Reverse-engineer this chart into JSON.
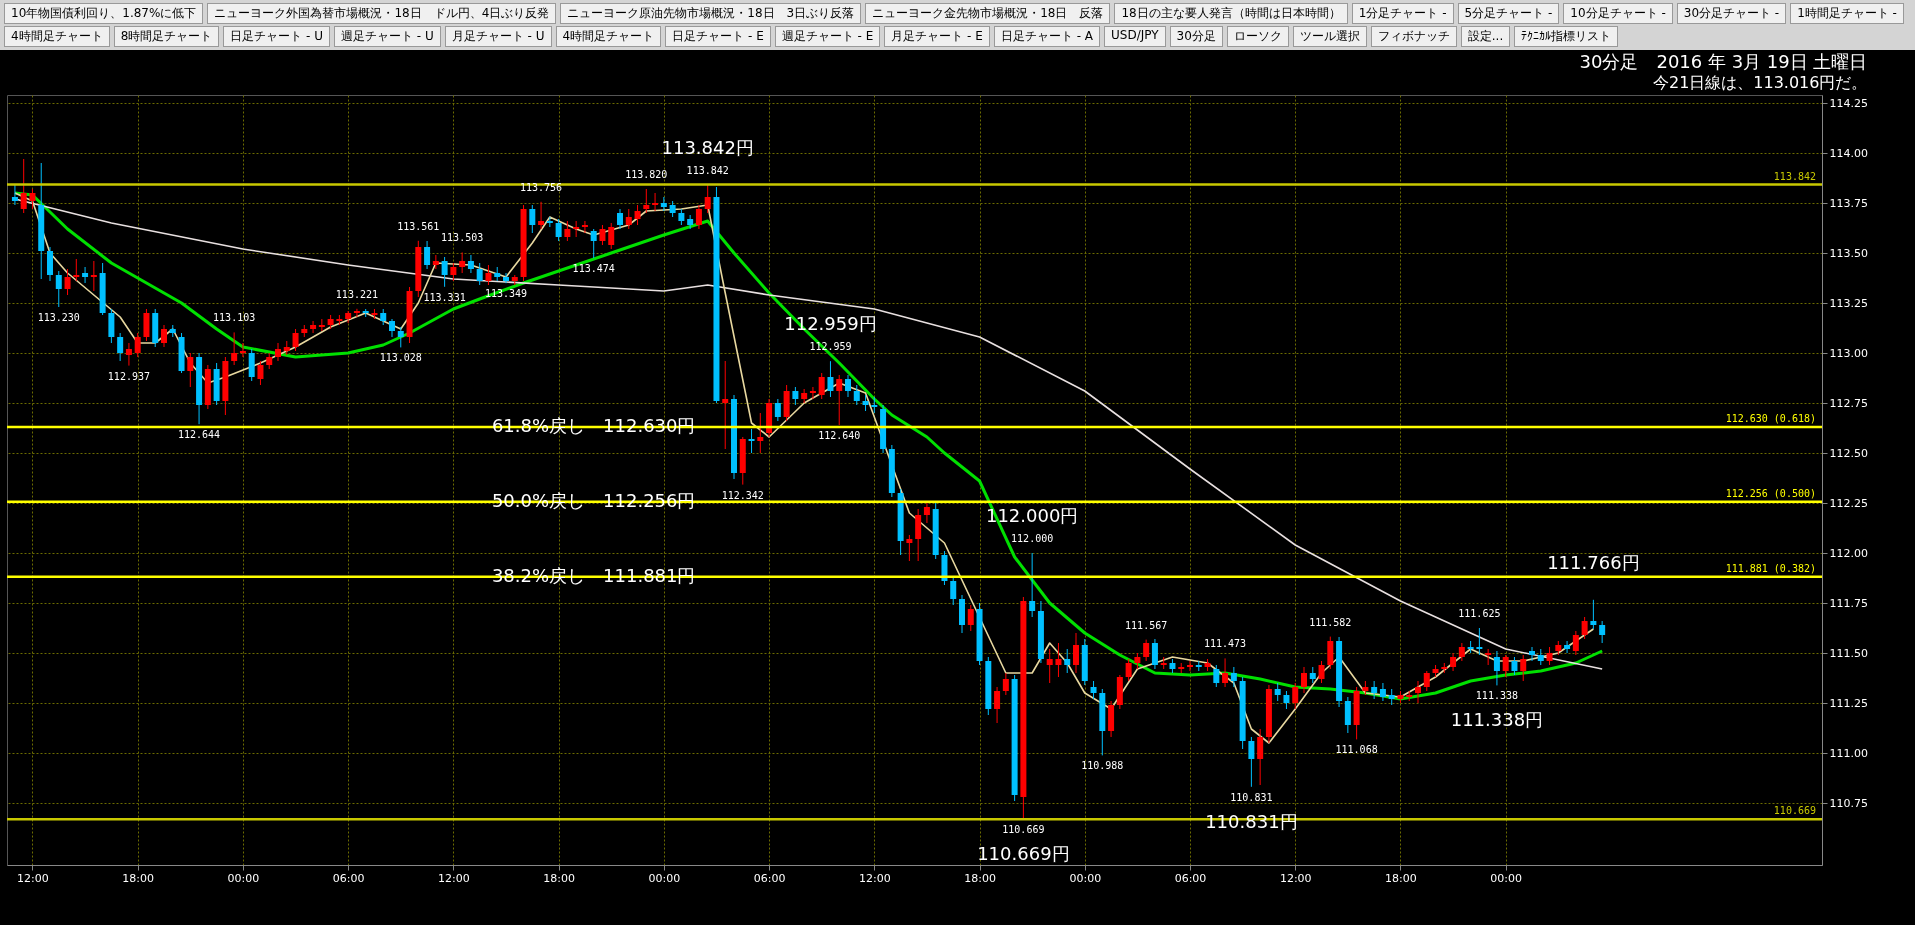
{
  "chart_data": {
    "type": "candlestick",
    "title": "30分足　2016 年 3月 19日 土曜日",
    "subtitle": "今21日線は、113.016円だ。",
    "x": [
      "2016-03-15T11:00",
      "2016-03-15T11:30",
      "2016-03-15T12:00",
      "2016-03-15T12:30",
      "2016-03-15T13:00",
      "2016-03-15T13:30",
      "2016-03-15T14:00",
      "2016-03-15T14:30",
      "2016-03-15T15:00",
      "2016-03-15T15:30",
      "2016-03-15T16:00",
      "2016-03-15T16:30",
      "2016-03-15T17:00",
      "2016-03-15T17:30",
      "2016-03-15T18:00",
      "2016-03-15T18:30",
      "2016-03-15T19:00",
      "2016-03-15T19:30",
      "2016-03-15T20:00",
      "2016-03-15T20:30",
      "2016-03-15T21:00",
      "2016-03-15T21:30",
      "2016-03-15T22:00",
      "2016-03-15T22:30",
      "2016-03-15T23:00",
      "2016-03-15T23:30",
      "2016-03-16T00:00",
      "2016-03-16T00:30",
      "2016-03-16T01:00",
      "2016-03-16T01:30",
      "2016-03-16T02:00",
      "2016-03-16T02:30",
      "2016-03-16T03:00",
      "2016-03-16T03:30",
      "2016-03-16T04:00",
      "2016-03-16T04:30",
      "2016-03-16T05:00",
      "2016-03-16T05:30",
      "2016-03-16T06:00",
      "2016-03-16T06:30",
      "2016-03-16T07:00",
      "2016-03-16T07:30",
      "2016-03-16T08:00",
      "2016-03-16T08:30",
      "2016-03-16T09:00",
      "2016-03-16T09:30",
      "2016-03-16T10:00",
      "2016-03-16T10:30",
      "2016-03-16T11:00",
      "2016-03-16T11:30",
      "2016-03-16T12:00",
      "2016-03-16T12:30",
      "2016-03-16T13:00",
      "2016-03-16T13:30",
      "2016-03-16T14:00",
      "2016-03-16T14:30",
      "2016-03-16T15:00",
      "2016-03-16T15:30",
      "2016-03-16T16:00",
      "2016-03-16T16:30",
      "2016-03-16T17:00",
      "2016-03-16T17:30",
      "2016-03-16T18:00",
      "2016-03-16T18:30",
      "2016-03-16T19:00",
      "2016-03-16T19:30",
      "2016-03-16T20:00",
      "2016-03-16T20:30",
      "2016-03-16T21:00",
      "2016-03-16T21:30",
      "2016-03-16T22:00",
      "2016-03-16T22:30",
      "2016-03-16T23:00",
      "2016-03-16T23:30",
      "2016-03-17T00:00",
      "2016-03-17T00:30",
      "2016-03-17T01:00",
      "2016-03-17T01:30",
      "2016-03-17T02:00",
      "2016-03-17T02:30",
      "2016-03-17T03:00",
      "2016-03-17T03:30",
      "2016-03-17T04:00",
      "2016-03-17T04:30",
      "2016-03-17T05:00",
      "2016-03-17T05:30",
      "2016-03-17T06:00",
      "2016-03-17T06:30",
      "2016-03-17T07:00",
      "2016-03-17T07:30",
      "2016-03-17T08:00",
      "2016-03-17T08:30",
      "2016-03-17T09:00",
      "2016-03-17T09:30",
      "2016-03-17T10:00",
      "2016-03-17T10:30",
      "2016-03-17T11:00",
      "2016-03-17T11:30",
      "2016-03-17T12:00",
      "2016-03-17T12:30",
      "2016-03-17T13:00",
      "2016-03-17T13:30",
      "2016-03-17T14:00",
      "2016-03-17T14:30",
      "2016-03-17T15:00",
      "2016-03-17T15:30",
      "2016-03-17T16:00",
      "2016-03-17T16:30",
      "2016-03-17T17:00",
      "2016-03-17T17:30",
      "2016-03-17T18:00",
      "2016-03-17T18:30",
      "2016-03-17T19:00",
      "2016-03-17T19:30",
      "2016-03-17T20:00",
      "2016-03-17T20:30",
      "2016-03-17T21:00",
      "2016-03-17T21:30",
      "2016-03-17T22:00",
      "2016-03-17T22:30",
      "2016-03-17T23:00",
      "2016-03-17T23:30",
      "2016-03-18T00:00",
      "2016-03-18T00:30",
      "2016-03-18T01:00",
      "2016-03-18T01:30",
      "2016-03-18T02:00",
      "2016-03-18T02:30",
      "2016-03-18T03:00",
      "2016-03-18T03:30",
      "2016-03-18T04:00",
      "2016-03-18T04:30",
      "2016-03-18T05:00",
      "2016-03-18T05:30",
      "2016-03-18T06:00",
      "2016-03-18T06:30",
      "2016-03-18T07:00",
      "2016-03-18T07:30",
      "2016-03-18T08:00",
      "2016-03-18T08:30",
      "2016-03-18T09:00",
      "2016-03-18T09:30",
      "2016-03-18T10:00",
      "2016-03-18T10:30",
      "2016-03-18T11:00",
      "2016-03-18T11:30",
      "2016-03-18T12:00",
      "2016-03-18T12:30",
      "2016-03-18T13:00",
      "2016-03-18T13:30",
      "2016-03-18T14:00",
      "2016-03-18T14:30",
      "2016-03-18T15:00",
      "2016-03-18T15:30",
      "2016-03-18T16:00",
      "2016-03-18T16:30",
      "2016-03-18T17:00",
      "2016-03-18T17:30",
      "2016-03-18T18:00",
      "2016-03-18T18:30",
      "2016-03-18T19:00",
      "2016-03-18T19:30",
      "2016-03-18T20:00",
      "2016-03-18T20:30",
      "2016-03-18T21:00",
      "2016-03-18T21:30",
      "2016-03-18T22:00",
      "2016-03-18T22:30",
      "2016-03-18T23:00",
      "2016-03-18T23:30",
      "2016-03-19T00:00",
      "2016-03-19T00:30",
      "2016-03-19T01:00",
      "2016-03-19T01:30",
      "2016-03-19T02:00",
      "2016-03-19T02:30",
      "2016-03-19T03:00",
      "2016-03-19T03:30",
      "2016-03-19T04:00",
      "2016-03-19T04:30",
      "2016-03-19T05:00",
      "2016-03-19T05:30"
    ],
    "ohlc": [
      [
        113.78,
        113.84,
        113.74,
        113.76
      ],
      [
        113.72,
        113.97,
        113.7,
        113.8
      ],
      [
        113.76,
        113.82,
        113.72,
        113.8
      ],
      [
        113.74,
        113.95,
        113.37,
        113.51
      ],
      [
        113.51,
        113.53,
        113.36,
        113.39
      ],
      [
        113.39,
        113.41,
        113.23,
        113.32
      ],
      [
        113.32,
        113.42,
        113.29,
        113.38
      ],
      [
        113.38,
        113.47,
        113.36,
        113.39
      ],
      [
        113.4,
        113.43,
        113.35,
        113.38
      ],
      [
        113.38,
        113.46,
        113.31,
        113.39
      ],
      [
        113.4,
        113.45,
        113.19,
        113.2
      ],
      [
        113.2,
        113.22,
        113.05,
        113.08
      ],
      [
        113.08,
        113.1,
        112.96,
        113.0
      ],
      [
        112.99,
        113.05,
        112.937,
        113.02
      ],
      [
        113.0,
        113.1,
        112.98,
        113.08
      ],
      [
        113.08,
        113.22,
        113.06,
        113.2
      ],
      [
        113.2,
        113.22,
        113.03,
        113.05
      ],
      [
        113.05,
        113.14,
        113.03,
        113.12
      ],
      [
        113.12,
        113.14,
        113.08,
        113.1
      ],
      [
        113.08,
        113.1,
        112.9,
        112.91
      ],
      [
        112.91,
        113.0,
        112.83,
        112.98
      ],
      [
        112.98,
        113.0,
        112.644,
        112.74
      ],
      [
        112.74,
        112.94,
        112.72,
        112.92
      ],
      [
        112.92,
        112.95,
        112.74,
        112.76
      ],
      [
        112.76,
        112.98,
        112.69,
        112.96
      ],
      [
        112.96,
        113.103,
        112.94,
        113.0
      ],
      [
        113.0,
        113.05,
        112.98,
        113.01
      ],
      [
        113.0,
        113.02,
        112.86,
        112.88
      ],
      [
        112.87,
        112.96,
        112.84,
        112.94
      ],
      [
        112.94,
        113.0,
        112.92,
        112.98
      ],
      [
        112.98,
        113.05,
        112.96,
        113.02
      ],
      [
        113.01,
        113.06,
        112.99,
        113.03
      ],
      [
        113.03,
        113.12,
        113.01,
        113.1
      ],
      [
        113.1,
        113.14,
        113.08,
        113.12
      ],
      [
        113.12,
        113.16,
        113.1,
        113.14
      ],
      [
        113.13,
        113.17,
        113.11,
        113.14
      ],
      [
        113.14,
        113.19,
        113.12,
        113.17
      ],
      [
        113.16,
        113.19,
        113.14,
        113.17
      ],
      [
        113.17,
        113.21,
        113.15,
        113.2
      ],
      [
        113.2,
        113.221,
        113.18,
        113.21
      ],
      [
        113.21,
        113.22,
        113.18,
        113.2
      ],
      [
        113.19,
        113.22,
        113.17,
        113.2
      ],
      [
        113.2,
        113.22,
        113.14,
        113.16
      ],
      [
        113.16,
        113.17,
        113.08,
        113.11
      ],
      [
        113.11,
        113.13,
        113.028,
        113.08
      ],
      [
        113.08,
        113.33,
        113.05,
        113.31
      ],
      [
        113.31,
        113.561,
        113.28,
        113.53
      ],
      [
        113.53,
        113.56,
        113.42,
        113.44
      ],
      [
        113.44,
        113.49,
        113.42,
        113.46
      ],
      [
        113.46,
        113.48,
        113.331,
        113.39
      ],
      [
        113.39,
        113.45,
        113.36,
        113.43
      ],
      [
        113.43,
        113.503,
        113.4,
        113.46
      ],
      [
        113.46,
        113.49,
        113.4,
        113.42
      ],
      [
        113.42,
        113.45,
        113.34,
        113.36
      ],
      [
        113.36,
        113.44,
        113.34,
        113.4
      ],
      [
        113.4,
        113.43,
        113.36,
        113.38
      ],
      [
        113.38,
        113.4,
        113.349,
        113.36
      ],
      [
        113.36,
        113.39,
        113.34,
        113.38
      ],
      [
        113.38,
        113.74,
        113.36,
        113.72
      ],
      [
        113.72,
        113.74,
        113.6,
        113.64
      ],
      [
        113.64,
        113.756,
        113.62,
        113.66
      ],
      [
        113.66,
        113.68,
        113.63,
        113.65
      ],
      [
        113.65,
        113.67,
        113.56,
        113.58
      ],
      [
        113.58,
        113.66,
        113.56,
        113.62
      ],
      [
        113.62,
        113.66,
        113.58,
        113.63
      ],
      [
        113.63,
        113.66,
        113.6,
        113.64
      ],
      [
        113.61,
        113.62,
        113.474,
        113.56
      ],
      [
        113.56,
        113.64,
        113.54,
        113.62
      ],
      [
        113.54,
        113.65,
        113.52,
        113.63
      ],
      [
        113.7,
        113.72,
        113.62,
        113.64
      ],
      [
        113.64,
        113.72,
        113.62,
        113.68
      ],
      [
        113.67,
        113.74,
        113.64,
        113.71
      ],
      [
        113.72,
        113.82,
        113.7,
        113.74
      ],
      [
        113.74,
        113.8,
        113.71,
        113.75
      ],
      [
        113.75,
        113.78,
        113.71,
        113.73
      ],
      [
        113.74,
        113.76,
        113.68,
        113.7
      ],
      [
        113.7,
        113.72,
        113.64,
        113.66
      ],
      [
        113.67,
        113.69,
        113.62,
        113.64
      ],
      [
        113.64,
        113.74,
        113.62,
        113.72
      ],
      [
        113.72,
        113.842,
        113.7,
        113.78
      ],
      [
        113.78,
        113.83,
        112.75,
        112.76
      ],
      [
        112.75,
        112.96,
        112.52,
        112.77
      ],
      [
        112.77,
        112.79,
        112.37,
        112.4
      ],
      [
        112.4,
        112.58,
        112.342,
        112.57
      ],
      [
        112.57,
        112.62,
        112.5,
        112.56
      ],
      [
        112.56,
        112.7,
        112.5,
        112.58
      ],
      [
        112.6,
        112.77,
        112.58,
        112.75
      ],
      [
        112.75,
        112.77,
        112.66,
        112.68
      ],
      [
        112.68,
        112.84,
        112.66,
        112.81
      ],
      [
        112.81,
        112.83,
        112.74,
        112.77
      ],
      [
        112.77,
        112.82,
        112.75,
        112.8
      ],
      [
        112.8,
        112.83,
        112.77,
        112.81
      ],
      [
        112.79,
        112.9,
        112.77,
        112.88
      ],
      [
        112.88,
        112.959,
        112.78,
        112.81
      ],
      [
        112.81,
        112.89,
        112.64,
        112.87
      ],
      [
        112.87,
        112.89,
        112.78,
        112.81
      ],
      [
        112.81,
        112.84,
        112.74,
        112.76
      ],
      [
        112.76,
        112.79,
        112.71,
        112.74
      ],
      [
        112.74,
        112.78,
        112.7,
        112.73
      ],
      [
        112.72,
        112.74,
        112.5,
        112.52
      ],
      [
        112.52,
        112.54,
        112.28,
        112.3
      ],
      [
        112.3,
        112.32,
        111.99,
        112.06
      ],
      [
        112.05,
        112.09,
        111.96,
        112.07
      ],
      [
        112.07,
        112.22,
        111.96,
        112.19
      ],
      [
        112.19,
        112.26,
        112.15,
        112.23
      ],
      [
        112.22,
        112.25,
        111.97,
        111.99
      ],
      [
        111.99,
        112.01,
        111.84,
        111.86
      ],
      [
        111.86,
        111.88,
        111.74,
        111.77
      ],
      [
        111.77,
        111.79,
        111.6,
        111.64
      ],
      [
        111.64,
        111.74,
        111.61,
        111.72
      ],
      [
        111.72,
        111.75,
        111.44,
        111.46
      ],
      [
        111.46,
        111.48,
        111.19,
        111.22
      ],
      [
        111.22,
        111.33,
        111.15,
        111.31
      ],
      [
        111.31,
        111.4,
        111.29,
        111.37
      ],
      [
        111.37,
        111.39,
        110.76,
        110.79
      ],
      [
        110.78,
        111.78,
        110.669,
        111.76
      ],
      [
        111.76,
        112.0,
        111.68,
        111.71
      ],
      [
        111.71,
        111.76,
        111.45,
        111.47
      ],
      [
        111.44,
        111.52,
        111.35,
        111.47
      ],
      [
        111.44,
        111.55,
        111.38,
        111.47
      ],
      [
        111.47,
        111.52,
        111.4,
        111.44
      ],
      [
        111.44,
        111.6,
        111.4,
        111.54
      ],
      [
        111.54,
        111.57,
        111.34,
        111.36
      ],
      [
        111.33,
        111.36,
        111.27,
        111.3
      ],
      [
        111.3,
        111.32,
        110.988,
        111.11
      ],
      [
        111.11,
        111.26,
        111.08,
        111.24
      ],
      [
        111.24,
        111.39,
        111.22,
        111.38
      ],
      [
        111.38,
        111.47,
        111.36,
        111.45
      ],
      [
        111.45,
        111.5,
        111.42,
        111.48
      ],
      [
        111.48,
        111.567,
        111.46,
        111.55
      ],
      [
        111.55,
        111.57,
        111.42,
        111.44
      ],
      [
        111.44,
        111.48,
        111.42,
        111.45
      ],
      [
        111.45,
        111.47,
        111.4,
        111.42
      ],
      [
        111.42,
        111.45,
        111.4,
        111.43
      ],
      [
        111.43,
        111.46,
        111.41,
        111.44
      ],
      [
        111.44,
        111.46,
        111.41,
        111.43
      ],
      [
        111.43,
        111.47,
        111.41,
        111.45
      ],
      [
        111.42,
        111.44,
        111.33,
        111.35
      ],
      [
        111.35,
        111.473,
        111.33,
        111.4
      ],
      [
        111.4,
        111.43,
        111.33,
        111.36
      ],
      [
        111.36,
        111.38,
        111.02,
        111.06
      ],
      [
        111.06,
        111.08,
        110.831,
        110.97
      ],
      [
        110.97,
        111.12,
        110.84,
        111.08
      ],
      [
        111.08,
        111.34,
        111.05,
        111.32
      ],
      [
        111.32,
        111.35,
        111.26,
        111.29
      ],
      [
        111.29,
        111.31,
        111.22,
        111.25
      ],
      [
        111.25,
        111.35,
        111.22,
        111.33
      ],
      [
        111.33,
        111.43,
        111.3,
        111.4
      ],
      [
        111.4,
        111.43,
        111.35,
        111.37
      ],
      [
        111.37,
        111.46,
        111.35,
        111.44
      ],
      [
        111.44,
        111.582,
        111.42,
        111.56
      ],
      [
        111.56,
        111.58,
        111.23,
        111.26
      ],
      [
        111.26,
        111.28,
        111.1,
        111.14
      ],
      [
        111.14,
        111.33,
        111.068,
        111.31
      ],
      [
        111.31,
        111.36,
        111.29,
        111.33
      ],
      [
        111.33,
        111.36,
        111.27,
        111.3
      ],
      [
        111.32,
        111.35,
        111.26,
        111.28
      ],
      [
        111.29,
        111.32,
        111.24,
        111.27
      ],
      [
        111.27,
        111.31,
        111.25,
        111.29
      ],
      [
        111.28,
        111.31,
        111.26,
        111.29
      ],
      [
        111.3,
        111.36,
        111.25,
        111.33
      ],
      [
        111.33,
        111.41,
        111.31,
        111.4
      ],
      [
        111.4,
        111.44,
        111.38,
        111.42
      ],
      [
        111.42,
        111.45,
        111.4,
        111.43
      ],
      [
        111.43,
        111.5,
        111.41,
        111.48
      ],
      [
        111.48,
        111.55,
        111.46,
        111.53
      ],
      [
        111.53,
        111.56,
        111.5,
        111.52
      ],
      [
        111.53,
        111.625,
        111.49,
        111.52
      ],
      [
        111.49,
        111.52,
        111.44,
        111.5
      ],
      [
        111.48,
        111.51,
        111.338,
        111.41
      ],
      [
        111.41,
        111.49,
        111.38,
        111.48
      ],
      [
        111.46,
        111.48,
        111.39,
        111.41
      ],
      [
        111.41,
        111.49,
        111.36,
        111.47
      ],
      [
        111.51,
        111.53,
        111.46,
        111.49
      ],
      [
        111.49,
        111.52,
        111.44,
        111.46
      ],
      [
        111.46,
        111.53,
        111.44,
        111.5
      ],
      [
        111.51,
        111.56,
        111.49,
        111.54
      ],
      [
        111.54,
        111.56,
        111.5,
        111.52
      ],
      [
        111.51,
        111.61,
        111.49,
        111.59
      ],
      [
        111.59,
        111.68,
        111.57,
        111.66
      ],
      [
        111.66,
        111.766,
        111.62,
        111.64
      ],
      [
        111.64,
        111.66,
        111.55,
        111.59
      ]
    ],
    "colors": [
      "#00c0ff",
      "#ff0000",
      "#ff0000",
      "#00c0ff",
      "#00c0ff",
      "#00c0ff",
      "#ff0000",
      "#ff0000",
      "#00c0ff",
      "#ff0000",
      "#00c0ff",
      "#00c0ff",
      "#00c0ff",
      "#ff0000",
      "#ff0000",
      "#ff0000",
      "#00c0ff",
      "#ff0000",
      "#00c0ff",
      "#00c0ff",
      "#ff0000",
      "#00c0ff",
      "#ff0000",
      "#00c0ff",
      "#ff0000",
      "#ff0000",
      "#ff0000",
      "#00c0ff",
      "#ff0000",
      "#ff0000",
      "#ff0000",
      "#ff0000",
      "#ff0000",
      "#ff0000",
      "#ff0000",
      "#ff0000",
      "#ff0000",
      "#ff0000",
      "#ff0000",
      "#ff0000",
      "#00c0ff",
      "#ff0000",
      "#00c0ff",
      "#00c0ff",
      "#00c0ff",
      "#ff0000",
      "#ff0000",
      "#00c0ff",
      "#ff0000",
      "#00c0ff",
      "#ff0000",
      "#ff0000",
      "#00c0ff",
      "#00c0ff",
      "#ff0000",
      "#00c0ff",
      "#00c0ff",
      "#ff0000",
      "#ff0000",
      "#00c0ff",
      "#ff0000",
      "#00c0ff",
      "#00c0ff",
      "#ff0000",
      "#ff0000",
      "#ff0000",
      "#00c0ff",
      "#ff0000",
      "#ff0000",
      "#00c0ff",
      "#ff0000",
      "#ff0000",
      "#ff0000",
      "#ff0000",
      "#00c0ff",
      "#00c0ff",
      "#00c0ff",
      "#00c0ff",
      "#ff0000",
      "#ff0000",
      "#00c0ff",
      "#ff0000",
      "#00c0ff",
      "#ff0000",
      "#00c0ff",
      "#ff0000",
      "#ff0000",
      "#00c0ff",
      "#ff0000",
      "#00c0ff",
      "#ff0000",
      "#ff0000",
      "#ff0000",
      "#00c0ff",
      "#ff0000",
      "#00c0ff",
      "#00c0ff",
      "#00c0ff",
      "#00c0ff",
      "#00c0ff",
      "#00c0ff",
      "#00c0ff",
      "#ff0000",
      "#ff0000",
      "#ff0000",
      "#00c0ff",
      "#00c0ff",
      "#00c0ff",
      "#00c0ff",
      "#ff0000",
      "#00c0ff",
      "#00c0ff",
      "#ff0000",
      "#ff0000",
      "#00c0ff",
      "#ff0000",
      "#00c0ff",
      "#00c0ff",
      "#ff0000",
      "#ff0000",
      "#00c0ff",
      "#ff0000",
      "#00c0ff",
      "#00c0ff",
      "#00c0ff",
      "#ff0000",
      "#ff0000",
      "#ff0000",
      "#ff0000",
      "#ff0000",
      "#00c0ff",
      "#ff0000",
      "#00c0ff",
      "#ff0000",
      "#ff0000",
      "#00c0ff",
      "#ff0000",
      "#00c0ff",
      "#ff0000",
      "#00c0ff",
      "#00c0ff",
      "#00c0ff",
      "#ff0000",
      "#ff0000",
      "#00c0ff",
      "#00c0ff",
      "#ff0000",
      "#ff0000",
      "#00c0ff",
      "#ff0000",
      "#ff0000",
      "#00c0ff",
      "#00c0ff",
      "#ff0000",
      "#ff0000",
      "#00c0ff",
      "#00c0ff",
      "#00c0ff",
      "#ff0000",
      "#ff0000",
      "#ff0000",
      "#ff0000",
      "#ff0000",
      "#ff0000",
      "#ff0000",
      "#ff0000",
      "#00c0ff",
      "#00c0ff",
      "#ff0000",
      "#00c0ff",
      "#ff0000",
      "#00c0ff",
      "#ff0000",
      "#00c0ff",
      "#00c0ff",
      "#ff0000",
      "#ff0000",
      "#00c0ff",
      "#ff0000",
      "#ff0000",
      "#00c0ff",
      "#00c0ff"
    ],
    "series": [
      {
        "type": "line",
        "color": "#00e000",
        "x": [
          "2016-03-15T11:00",
          "2016-03-15T12:00",
          "2016-03-15T14:00",
          "2016-03-15T16:30",
          "2016-03-15T18:30",
          "2016-03-15T20:30",
          "2016-03-15T22:30",
          "2016-03-16T00:00",
          "2016-03-16T03:00",
          "2016-03-16T06:00",
          "2016-03-16T08:00",
          "2016-03-16T09:30",
          "2016-03-16T12:00",
          "2016-03-16T13:30",
          "2016-03-16T16:00",
          "2016-03-16T18:00",
          "2016-03-16T21:00",
          "2016-03-17T00:00",
          "2016-03-17T02:30",
          "2016-03-17T04:00",
          "2016-03-17T06:00",
          "2016-03-17T08:00",
          "2016-03-17T10:00",
          "2016-03-17T12:00",
          "2016-03-17T13:00",
          "2016-03-17T15:00",
          "2016-03-17T16:00",
          "2016-03-17T18:00",
          "2016-03-17T20:00",
          "2016-03-17T22:00",
          "2016-03-18T00:00",
          "2016-03-18T02:00",
          "2016-03-18T04:00",
          "2016-03-18T06:00",
          "2016-03-18T08:00",
          "2016-03-18T10:00",
          "2016-03-18T12:00",
          "2016-03-18T14:00",
          "2016-03-18T16:00",
          "2016-03-18T18:00",
          "2016-03-18T20:00",
          "2016-03-18T22:00",
          "2016-03-19T00:00",
          "2016-03-19T02:00",
          "2016-03-19T04:00",
          "2016-03-19T05:30"
        ],
        "values": [
          113.8,
          113.79,
          113.62,
          113.45,
          113.35,
          113.25,
          113.12,
          113.03,
          112.98,
          113.0,
          113.04,
          113.1,
          113.22,
          113.27,
          113.35,
          113.41,
          113.5,
          113.59,
          113.66,
          113.5,
          113.3,
          113.12,
          112.95,
          112.77,
          112.69,
          112.58,
          112.5,
          112.36,
          111.98,
          111.75,
          111.6,
          111.49,
          111.4,
          111.39,
          111.4,
          111.37,
          111.33,
          111.32,
          111.3,
          111.27,
          111.3,
          111.36,
          111.39,
          111.41,
          111.45,
          111.51
        ]
      },
      {
        "type": "line",
        "color": "#e8e0e0",
        "x": [
          "2016-03-15T11:00",
          "2016-03-15T16:30",
          "2016-03-16T00:00",
          "2016-03-16T06:00",
          "2016-03-16T12:00",
          "2016-03-16T18:00",
          "2016-03-17T00:00",
          "2016-03-17T02:30",
          "2016-03-17T06:00",
          "2016-03-17T12:00",
          "2016-03-17T15:00",
          "2016-03-17T18:00",
          "2016-03-18T00:00",
          "2016-03-18T06:00",
          "2016-03-18T12:00",
          "2016-03-18T18:00",
          "2016-03-19T00:00",
          "2016-03-19T05:30"
        ],
        "values": [
          113.77,
          113.65,
          113.52,
          113.44,
          113.37,
          113.34,
          113.31,
          113.34,
          113.29,
          113.22,
          113.15,
          113.08,
          112.81,
          112.42,
          112.04,
          111.76,
          111.52,
          111.42
        ]
      },
      {
        "type": "line",
        "color": "#e8d8a0",
        "x": [
          "2016-03-15T11:00",
          "2016-03-15T12:00",
          "2016-03-15T13:00",
          "2016-03-15T14:00",
          "2016-03-15T16:00",
          "2016-03-15T17:00",
          "2016-03-15T18:00",
          "2016-03-15T19:00",
          "2016-03-15T20:00",
          "2016-03-15T21:00",
          "2016-03-15T22:00",
          "2016-03-15T23:00",
          "2016-03-16T01:00",
          "2016-03-16T03:00",
          "2016-03-16T05:00",
          "2016-03-16T07:00",
          "2016-03-16T09:00",
          "2016-03-16T10:00",
          "2016-03-16T11:00",
          "2016-03-16T13:00",
          "2016-03-16T15:00",
          "2016-03-16T16:30",
          "2016-03-16T17:30",
          "2016-03-16T19:00",
          "2016-03-16T20:00",
          "2016-03-16T22:00",
          "2016-03-16T23:00",
          "2016-03-17T01:00",
          "2016-03-17T02:30",
          "2016-03-17T03:30",
          "2016-03-17T05:00",
          "2016-03-17T06:00",
          "2016-03-17T08:00",
          "2016-03-17T10:00",
          "2016-03-17T11:30",
          "2016-03-17T13:00",
          "2016-03-17T14:00",
          "2016-03-17T16:00",
          "2016-03-17T18:00",
          "2016-03-17T19:30",
          "2016-03-17T20:00",
          "2016-03-17T21:00",
          "2016-03-17T22:00",
          "2016-03-17T23:00",
          "2016-03-18T00:00",
          "2016-03-18T01:30",
          "2016-03-18T03:00",
          "2016-03-18T05:00",
          "2016-03-18T07:00",
          "2016-03-18T08:30",
          "2016-03-18T09:30",
          "2016-03-18T10:30",
          "2016-03-18T12:00",
          "2016-03-18T13:30",
          "2016-03-18T14:30",
          "2016-03-18T16:00",
          "2016-03-18T18:00",
          "2016-03-18T20:00",
          "2016-03-18T22:00",
          "2016-03-18T23:30",
          "2016-03-19T01:00",
          "2016-03-19T03:00",
          "2016-03-19T05:00"
        ],
        "values": [
          113.8,
          113.76,
          113.5,
          113.4,
          null,
          113.18,
          113.05,
          113.05,
          113.12,
          112.95,
          112.85,
          112.88,
          112.95,
          113.03,
          113.13,
          113.2,
          113.12,
          113.25,
          113.45,
          113.44,
          113.38,
          113.55,
          113.68,
          113.62,
          113.59,
          113.64,
          113.71,
          113.72,
          113.74,
          113.3,
          112.65,
          112.58,
          112.75,
          112.85,
          112.8,
          null,
          112.2,
          112.05,
          null,
          111.4,
          null,
          111.4,
          111.55,
          111.45,
          111.3,
          111.22,
          111.42,
          111.48,
          111.45,
          111.35,
          111.12,
          111.05,
          111.22,
          111.4,
          111.48,
          111.3,
          111.28,
          111.38,
          111.52,
          111.46,
          111.46,
          111.5,
          111.62
        ]
      }
    ],
    "xlim": [
      "2016-03-15T10:50",
      "2016-03-19T17:45"
    ],
    "xticks": [
      {
        "value": "2016-03-15T12:00",
        "label": "12:00"
      },
      {
        "value": "2016-03-15T18:00",
        "label": "18:00"
      },
      {
        "value": "2016-03-16T00:00",
        "label": "00:00"
      },
      {
        "value": "2016-03-16T06:00",
        "label": "06:00"
      },
      {
        "value": "2016-03-16T12:00",
        "label": "12:00"
      },
      {
        "value": "2016-03-16T18:00",
        "label": "18:00"
      },
      {
        "value": "2016-03-17T00:00",
        "label": "00:00"
      },
      {
        "value": "2016-03-17T06:00",
        "label": "06:00"
      },
      {
        "value": "2016-03-17T12:00",
        "label": "12:00"
      },
      {
        "value": "2016-03-17T18:00",
        "label": "18:00"
      },
      {
        "value": "2016-03-18T00:00",
        "label": "00:00"
      },
      {
        "value": "2016-03-18T06:00",
        "label": "06:00"
      },
      {
        "value": "2016-03-18T12:00",
        "label": "12:00"
      },
      {
        "value": "2016-03-18T18:00",
        "label": "18:00"
      },
      {
        "value": "2016-03-19T00:00",
        "label": "00:00"
      }
    ],
    "ylim": [
      110.44,
      114.29
    ],
    "yticks": [
      110.75,
      {
        "value": 111,
        "label": "111.00"
      },
      111.25,
      {
        "value": 111.5,
        "label": "111.50"
      },
      111.75,
      {
        "value": 112,
        "label": "112.00"
      },
      112.25,
      {
        "value": 112.5,
        "label": "112.50"
      },
      112.75,
      {
        "value": 113,
        "label": "113.00"
      },
      113.25,
      {
        "value": 113.5,
        "label": "113.50"
      },
      113.75,
      {
        "value": 114,
        "label": "114.00"
      },
      114.25
    ],
    "grid": true,
    "ref_lines": [
      {
        "axis": "y",
        "value": 112.63,
        "label": "112.630 (0.618)",
        "color": "#ffff00"
      },
      {
        "axis": "y",
        "value": 112.256,
        "label": "112.256 (0.500)",
        "color": "#ffff00"
      },
      {
        "axis": "y",
        "value": 111.881,
        "label": "111.881 (0.382)",
        "color": "#ffff00"
      },
      {
        "axis": "y",
        "value": 113.842,
        "label": "113.842",
        "color": "#c8c800"
      },
      {
        "axis": "y",
        "value": 110.669,
        "label": "110.669",
        "color": "#c8c800"
      }
    ],
    "annotations": [
      "10年物国債利回り、1.87%に低下",
      "ニューヨーク外国為替市場概況・18日　ドル円、4日ぶり反発",
      "ニューヨーク原油先物市場概況・18日　3日ぶり反落",
      "ニューヨーク金先物市場概況・18日　反落",
      "18日の主な要人発言（時間は日本時間）",
      "1分足チャート -",
      "5分足チャート -",
      "10分足チャート -",
      "30分足チャート -",
      "1時間足チャート -",
      "4時間足チャート",
      "8時間足チャート",
      "日足チャート - U",
      "週足チャート - U",
      "月足チャート - U",
      "4時間足チャート",
      "日足チャート - E",
      "週足チャート - E",
      "月足チャート - E",
      "日足チャート - A",
      "USD/JPY",
      "30分足",
      "ローソク",
      "ツール選択",
      "フィボナッチ",
      "設定...",
      "ﾃｸﾆｶﾙ指標リスト",
      {
        "text": "113.230",
        "x": "2016-03-15T13:30",
        "y": 113.23
      },
      {
        "text": "112.937",
        "x": "2016-03-15T17:30",
        "y": 112.937
      },
      {
        "text": "112.644",
        "x": "2016-03-15T21:30",
        "y": 112.644
      },
      {
        "text": "113.103",
        "x": "2016-03-15T23:30",
        "y": 113.103
      },
      {
        "text": "113.221",
        "x": "2016-03-16T06:30",
        "y": 113.221
      },
      {
        "text": "113.028",
        "x": "2016-03-16T09:00",
        "y": 113.028
      },
      {
        "text": "113.561",
        "x": "2016-03-16T10:00",
        "y": 113.561
      },
      {
        "text": "113.503",
        "x": "2016-03-16T12:30",
        "y": 113.503
      },
      {
        "text": "113.331",
        "x": "2016-03-16T11:30",
        "y": 113.331
      },
      {
        "text": "113.349",
        "x": "2016-03-16T15:00",
        "y": 113.349
      },
      {
        "text": "113.756",
        "x": "2016-03-16T17:00",
        "y": 113.756
      },
      {
        "text": "113.474",
        "x": "2016-03-16T20:00",
        "y": 113.474
      },
      {
        "text": "113.820",
        "x": "2016-03-16T23:00",
        "y": 113.82
      },
      {
        "text": "113.842",
        "x": "2016-03-17T02:30",
        "y": 113.842
      },
      {
        "text": "112.342",
        "x": "2016-03-17T04:30",
        "y": 112.342
      },
      {
        "text": "112.959",
        "x": "2016-03-17T09:30",
        "y": 112.959
      },
      {
        "text": "112.640",
        "x": "2016-03-17T10:00",
        "y": 112.64
      },
      {
        "text": "112.000",
        "x": "2016-03-17T21:00",
        "y": 112.0
      },
      {
        "text": "110.669",
        "x": "2016-03-17T20:30",
        "y": 110.669
      },
      {
        "text": "110.988",
        "x": "2016-03-18T01:00",
        "y": 110.988
      },
      {
        "text": "111.567",
        "x": "2016-03-18T03:30",
        "y": 111.567
      },
      {
        "text": "111.473",
        "x": "2016-03-18T08:00",
        "y": 111.473
      },
      {
        "text": "110.831",
        "x": "2016-03-18T09:30",
        "y": 110.831
      },
      {
        "text": "111.582",
        "x": "2016-03-18T14:00",
        "y": 111.582
      },
      {
        "text": "111.068",
        "x": "2016-03-18T15:30",
        "y": 111.068
      },
      {
        "text": "111.625",
        "x": "2016-03-18T22:30",
        "y": 111.625
      },
      {
        "text": "111.338",
        "x": "2016-03-18T23:30",
        "y": 111.338
      },
      {
        "text": "113.842円",
        "x": "2016-03-17T02:30",
        "y": 113.842
      },
      {
        "text": "112.959円",
        "x": "2016-03-17T09:30",
        "y": 112.959
      },
      {
        "text": "61.8%戻し　112.630円",
        "x": "2016-03-16T20:00",
        "y": 112.63
      },
      {
        "text": "50.0%戻し　112.256円",
        "x": "2016-03-16T20:00",
        "y": 112.256
      },
      {
        "text": "38.2%戻し　111.881円",
        "x": "2016-03-16T20:00",
        "y": 111.881
      },
      {
        "text": "112.000円",
        "x": "2016-03-17T21:00",
        "y": 112.0
      },
      {
        "text": "110.669円",
        "x": "2016-03-17T20:30",
        "y": 110.669
      },
      {
        "text": "110.831円",
        "x": "2016-03-18T09:30",
        "y": 110.831
      },
      {
        "text": "111.338円",
        "x": "2016-03-18T23:30",
        "y": 111.338
      },
      {
        "text": "111.766円",
        "x": "2016-03-19T05:00",
        "y": 111.766
      }
    ]
  }
}
